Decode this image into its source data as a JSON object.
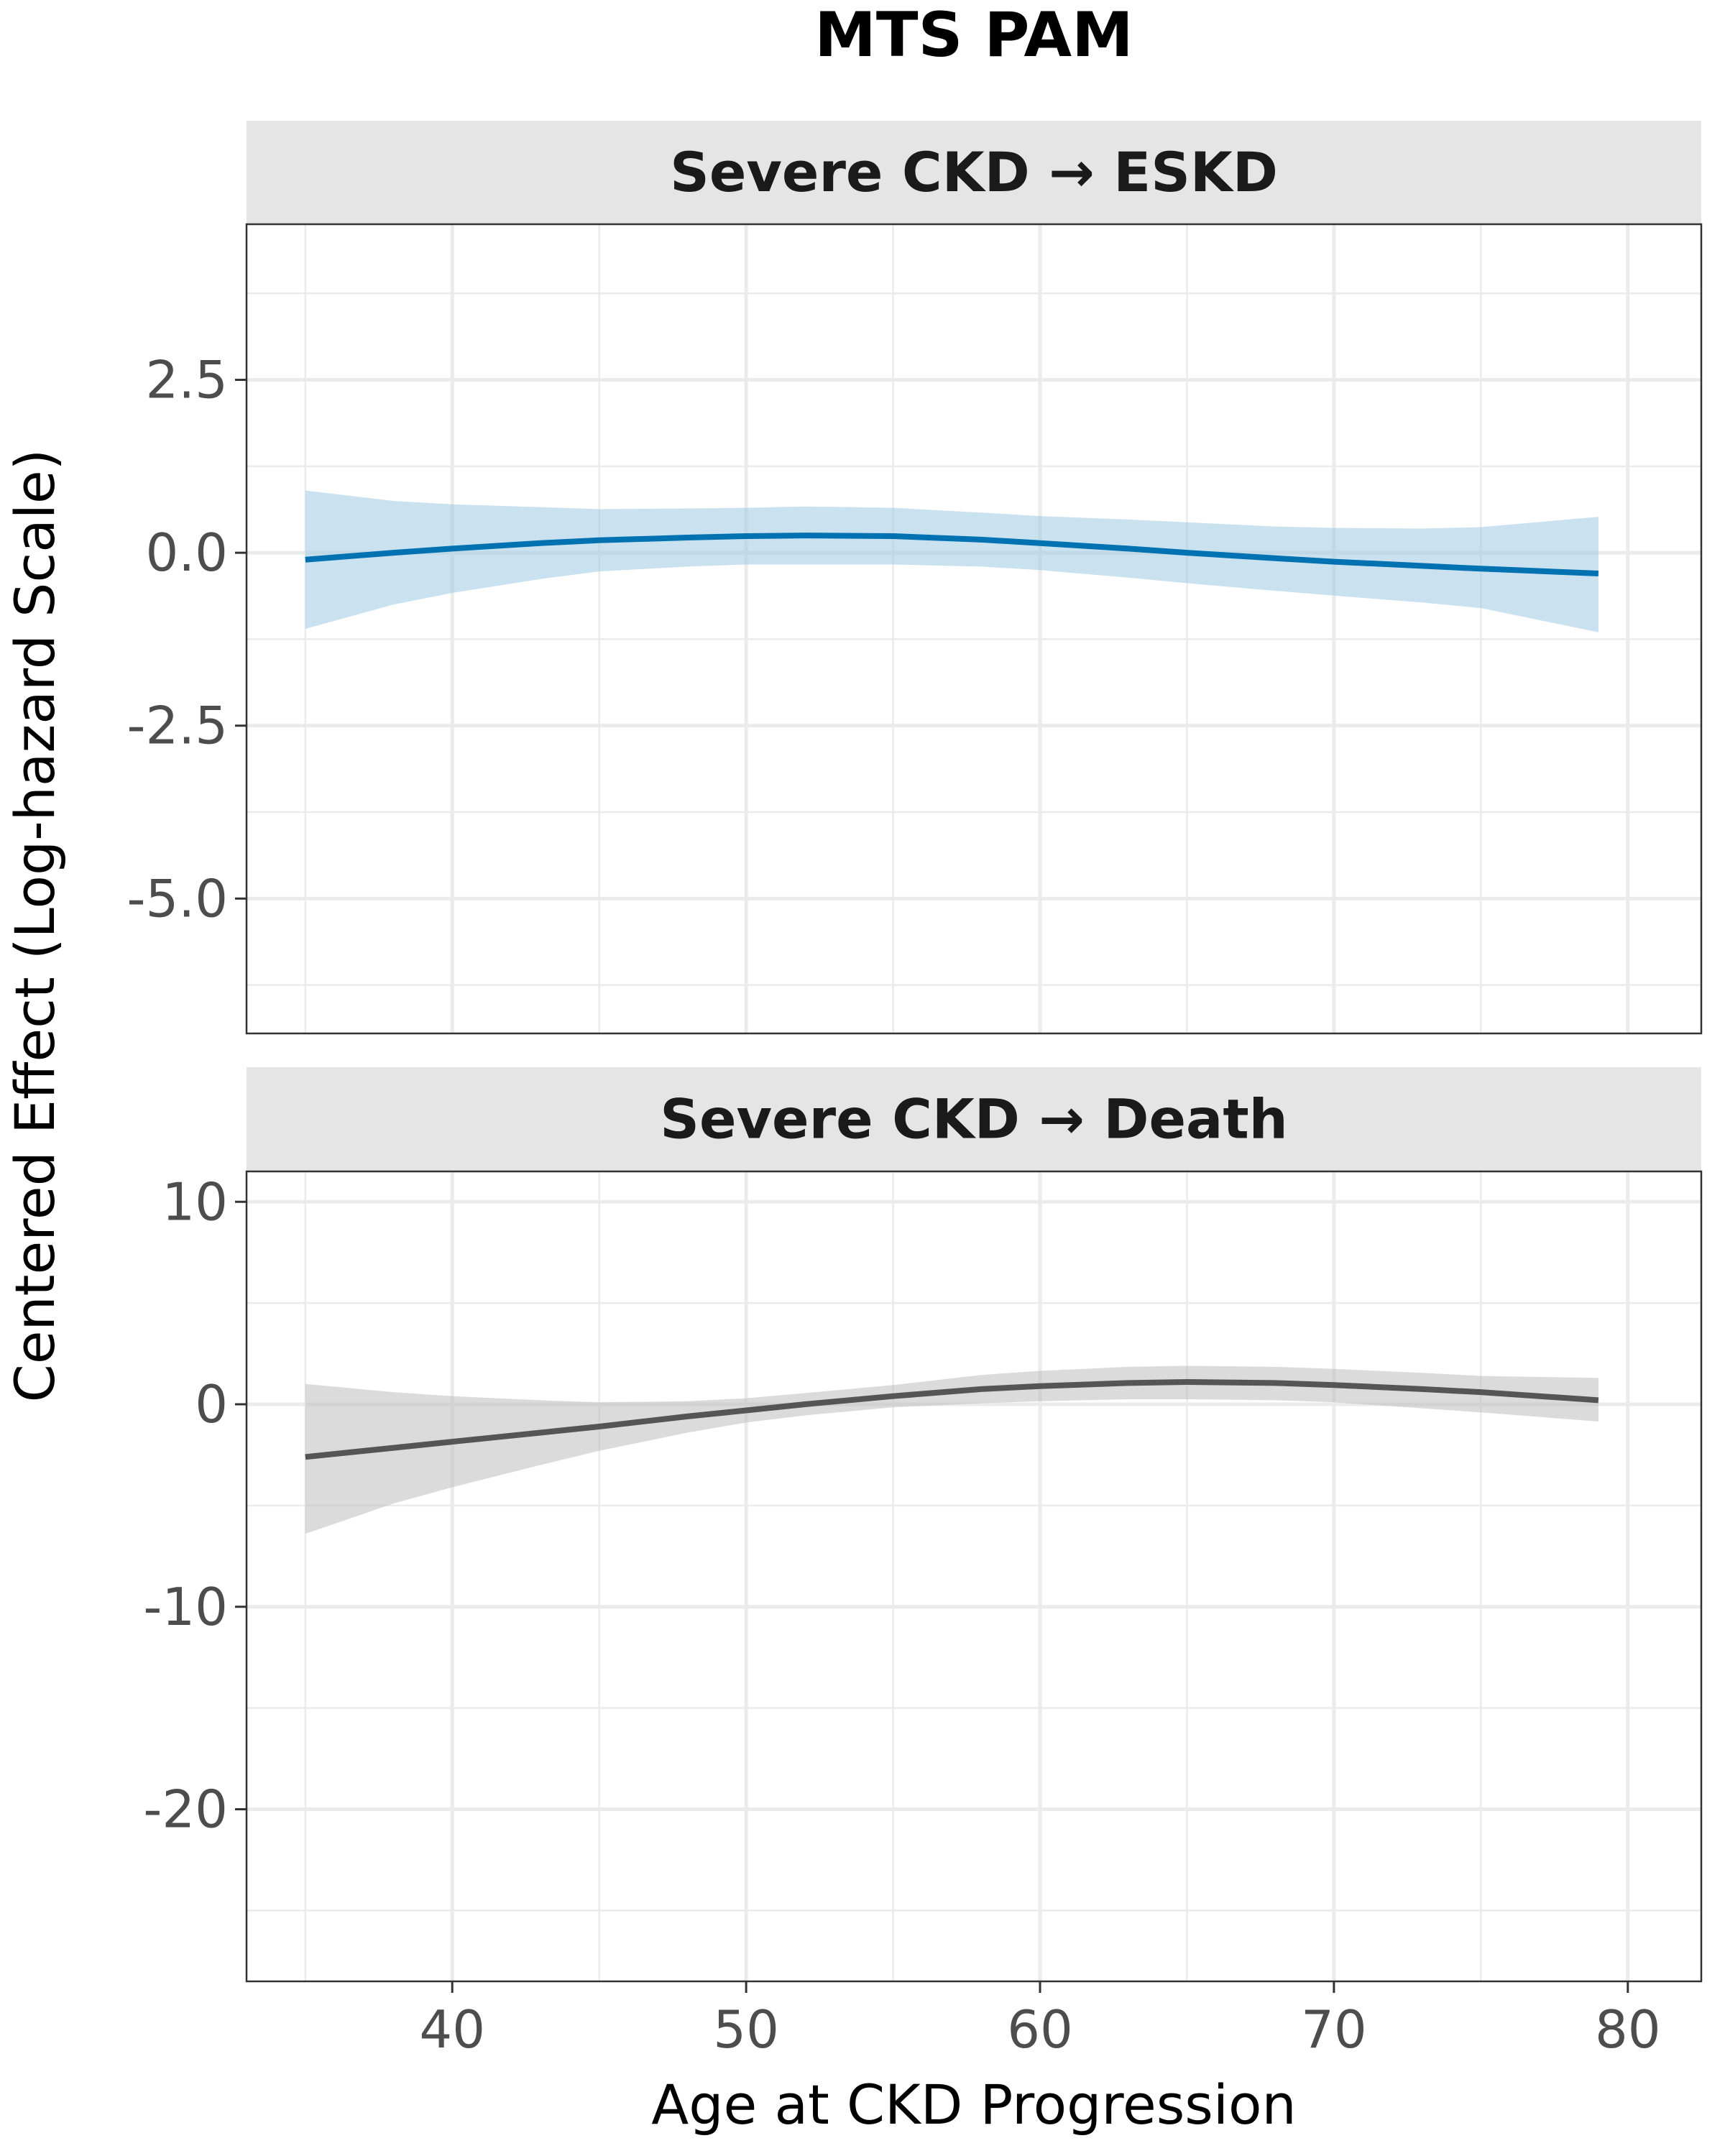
{
  "title": "MTS PAM",
  "chart_data": {
    "type": "line",
    "title": "MTS PAM",
    "xlabel": "Age at CKD Progression",
    "ylabel": "Centered Effect (Log-hazard Scale)",
    "xlim": [
      33,
      82.5
    ],
    "x_ticks": [
      40,
      50,
      60,
      70,
      80
    ],
    "grid": true,
    "panels": [
      {
        "name": "Severe CKD → ESKD",
        "ylim": [
          -6.95,
          4.75
        ],
        "y_ticks": [
          2.5,
          0.0,
          -2.5,
          -5.0
        ],
        "y_tick_labels": [
          "2.5",
          "0.0",
          "-2.5",
          "-5.0"
        ],
        "color": "#0072B2",
        "band_color": "#9ECAE1",
        "x": [
          35,
          38,
          40,
          43,
          45,
          48,
          50,
          52,
          55,
          58,
          60,
          63,
          65,
          68,
          70,
          73,
          75,
          79
        ],
        "y": [
          -0.1,
          0.0,
          0.06,
          0.14,
          0.18,
          0.22,
          0.24,
          0.25,
          0.24,
          0.19,
          0.14,
          0.06,
          0.0,
          -0.08,
          -0.13,
          -0.19,
          -0.23,
          -0.3
        ],
        "lower": [
          -1.1,
          -0.75,
          -0.58,
          -0.38,
          -0.27,
          -0.2,
          -0.17,
          -0.17,
          -0.17,
          -0.2,
          -0.25,
          -0.36,
          -0.44,
          -0.55,
          -0.62,
          -0.72,
          -0.8,
          -1.15
        ],
        "upper": [
          0.9,
          0.75,
          0.7,
          0.66,
          0.63,
          0.64,
          0.65,
          0.67,
          0.65,
          0.58,
          0.53,
          0.48,
          0.44,
          0.38,
          0.36,
          0.35,
          0.37,
          0.52
        ]
      },
      {
        "name": "Severe CKD → Death",
        "ylim": [
          -28.5,
          11.5
        ],
        "y_ticks": [
          10,
          0,
          -10,
          -20
        ],
        "y_tick_labels": [
          "10",
          "0",
          "-10",
          "-20"
        ],
        "color": "#555555",
        "band_color": "#BDBDBD",
        "x": [
          35,
          38,
          40,
          43,
          45,
          48,
          50,
          52,
          55,
          58,
          60,
          63,
          65,
          68,
          70,
          73,
          75,
          79
        ],
        "y": [
          -2.6,
          -2.15,
          -1.85,
          -1.4,
          -1.1,
          -0.6,
          -0.3,
          0.0,
          0.4,
          0.75,
          0.9,
          1.05,
          1.1,
          1.05,
          0.95,
          0.75,
          0.6,
          0.2
        ],
        "lower": [
          -6.4,
          -4.9,
          -4.1,
          -3.0,
          -2.3,
          -1.4,
          -0.9,
          -0.55,
          -0.15,
          0.05,
          0.15,
          0.25,
          0.25,
          0.2,
          0.1,
          -0.2,
          -0.4,
          -0.85
        ],
        "upper": [
          1.0,
          0.6,
          0.4,
          0.2,
          0.1,
          0.15,
          0.3,
          0.55,
          0.95,
          1.45,
          1.65,
          1.85,
          1.9,
          1.85,
          1.75,
          1.55,
          1.4,
          1.3
        ]
      }
    ]
  }
}
